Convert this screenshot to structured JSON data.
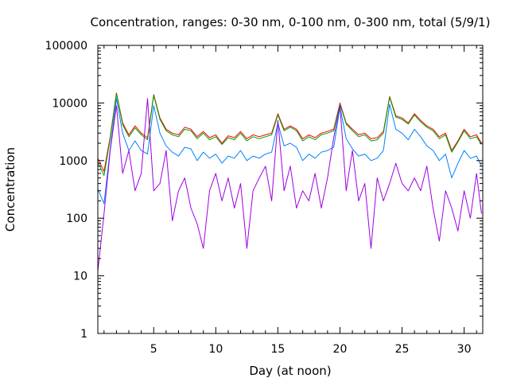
{
  "chart_data": {
    "type": "line",
    "title": "Concentration, ranges: 0-30 nm, 0-100 nm, 0-300 nm, total (5/9/1)",
    "xlabel": "Day (at noon)",
    "ylabel": "Concentration",
    "xlim": [
      0.5,
      31.5
    ],
    "ylim": [
      1,
      100000
    ],
    "yscale": "log",
    "grid": false,
    "x_ticks": [
      5,
      10,
      15,
      20,
      25,
      30
    ],
    "y_ticks": [
      {
        "value": 1,
        "label": "1"
      },
      {
        "value": 10,
        "label": "10"
      },
      {
        "value": 100,
        "label": "100"
      },
      {
        "value": 1000,
        "label": "1000"
      },
      {
        "value": 10000,
        "label": "10000"
      },
      {
        "value": 100000,
        "label": "100000"
      }
    ],
    "series": [
      {
        "color": "#ff0000",
        "x": [
          0.5,
          1,
          1.5,
          2,
          2.5,
          3,
          3.5,
          4,
          4.5,
          5,
          5.5,
          6,
          6.5,
          7,
          7.5,
          8,
          8.5,
          9,
          9.5,
          10,
          10.5,
          11,
          11.5,
          12,
          12.5,
          13,
          13.5,
          14,
          14.5,
          15,
          15.5,
          16,
          16.5,
          17,
          17.5,
          18,
          18.5,
          19,
          19.5,
          20,
          20.5,
          21,
          21.5,
          22,
          22.5,
          23,
          23.5,
          24,
          24.5,
          25,
          25.5,
          26,
          26.5,
          27,
          27.5,
          28,
          28.5,
          29,
          29.5,
          30,
          30.5,
          31,
          31.4
        ],
        "y": [
          1100,
          650,
          2600,
          15000,
          4500,
          2800,
          4000,
          3000,
          2500,
          14000,
          5500,
          3500,
          3000,
          2800,
          3800,
          3500,
          2600,
          3200,
          2500,
          2800,
          2000,
          2700,
          2500,
          3200,
          2400,
          2800,
          2600,
          2800,
          3000,
          6500,
          3500,
          4000,
          3500,
          2400,
          2800,
          2500,
          3000,
          3200,
          3500,
          10000,
          4500,
          3500,
          2800,
          3000,
          2400,
          2500,
          3200,
          13000,
          6000,
          5500,
          4500,
          6500,
          5000,
          4000,
          3500,
          2600,
          3000,
          1500,
          2200,
          3500,
          2600,
          2800,
          2000
        ]
      },
      {
        "color": "#00a000",
        "x": [
          0.5,
          1,
          1.5,
          2,
          2.5,
          3,
          3.5,
          4,
          4.5,
          5,
          5.5,
          6,
          6.5,
          7,
          7.5,
          8,
          8.5,
          9,
          9.5,
          10,
          10.5,
          11,
          11.5,
          12,
          12.5,
          13,
          13.5,
          14,
          14.5,
          15,
          15.5,
          16,
          16.5,
          17,
          17.5,
          18,
          18.5,
          19,
          19.5,
          20,
          20.5,
          21,
          21.5,
          22,
          22.5,
          23,
          23.5,
          24,
          24.5,
          25,
          25.5,
          26,
          26.5,
          27,
          27.5,
          28,
          28.5,
          29,
          29.5,
          30,
          30.5,
          31,
          31.4
        ],
        "y": [
          950,
          550,
          2400,
          14500,
          4200,
          2600,
          3700,
          2800,
          2300,
          13500,
          5200,
          3300,
          2800,
          2600,
          3500,
          3300,
          2400,
          3000,
          2300,
          2600,
          1900,
          2500,
          2300,
          3000,
          2200,
          2600,
          2400,
          2600,
          2800,
          6200,
          3300,
          3800,
          3300,
          2200,
          2600,
          2300,
          2800,
          3000,
          3300,
          9500,
          4300,
          3300,
          2600,
          2800,
          2200,
          2300,
          3000,
          12500,
          5700,
          5200,
          4300,
          6200,
          4700,
          3800,
          3300,
          2400,
          2800,
          1400,
          2100,
          3300,
          2400,
          2600,
          1900
        ]
      },
      {
        "color": "#0080ff",
        "x": [
          0.5,
          1,
          1.5,
          2,
          2.5,
          3,
          3.5,
          4,
          4.5,
          5,
          5.5,
          6,
          6.5,
          7,
          7.5,
          8,
          8.5,
          9,
          9.5,
          10,
          10.5,
          11,
          11.5,
          12,
          12.5,
          13,
          13.5,
          14,
          14.5,
          15,
          15.5,
          16,
          16.5,
          17,
          17.5,
          18,
          18.5,
          19,
          19.5,
          20,
          20.5,
          21,
          21.5,
          22,
          22.5,
          23,
          23.5,
          24,
          24.5,
          25,
          25.5,
          26,
          26.5,
          27,
          27.5,
          28,
          28.5,
          29,
          29.5,
          30,
          30.5,
          31,
          31.4
        ],
        "y": [
          320,
          180,
          1600,
          12000,
          3000,
          1500,
          2200,
          1500,
          1300,
          9000,
          3000,
          1800,
          1400,
          1200,
          1700,
          1600,
          1000,
          1400,
          1100,
          1300,
          900,
          1200,
          1100,
          1500,
          1000,
          1200,
          1100,
          1300,
          1400,
          4500,
          1800,
          2000,
          1700,
          1000,
          1300,
          1100,
          1400,
          1500,
          1700,
          8500,
          2400,
          1600,
          1200,
          1300,
          1000,
          1100,
          1500,
          9500,
          3500,
          3000,
          2300,
          3500,
          2600,
          1800,
          1500,
          1000,
          1300,
          500,
          900,
          1500,
          1100,
          1200,
          800
        ]
      },
      {
        "color": "#a000e0",
        "x": [
          0.5,
          1,
          1.5,
          2,
          2.5,
          3,
          3.5,
          4,
          4.5,
          5,
          5.5,
          6,
          6.5,
          7,
          7.5,
          8,
          8.5,
          9,
          9.5,
          10,
          10.5,
          11,
          11.5,
          12,
          12.5,
          13,
          13.5,
          14,
          14.5,
          15,
          15.5,
          16,
          16.5,
          17,
          17.5,
          18,
          18.5,
          19,
          19.5,
          20,
          20.5,
          21,
          21.5,
          22,
          22.5,
          23,
          23.5,
          24,
          24.5,
          25,
          25.5,
          26,
          26.5,
          27,
          27.5,
          28,
          28.5,
          29,
          29.5,
          30,
          30.5,
          31,
          31.4
        ],
        "y": [
          12,
          120,
          1500,
          9000,
          600,
          1500,
          300,
          600,
          12000,
          300,
          400,
          1500,
          90,
          300,
          500,
          150,
          80,
          30,
          300,
          600,
          200,
          500,
          150,
          400,
          30,
          300,
          500,
          800,
          200,
          5000,
          300,
          800,
          150,
          300,
          200,
          600,
          150,
          500,
          2500,
          9000,
          300,
          1500,
          200,
          400,
          30,
          500,
          200,
          400,
          900,
          400,
          300,
          500,
          300,
          800,
          150,
          40,
          300,
          150,
          60,
          300,
          100,
          600,
          120
        ]
      }
    ]
  }
}
